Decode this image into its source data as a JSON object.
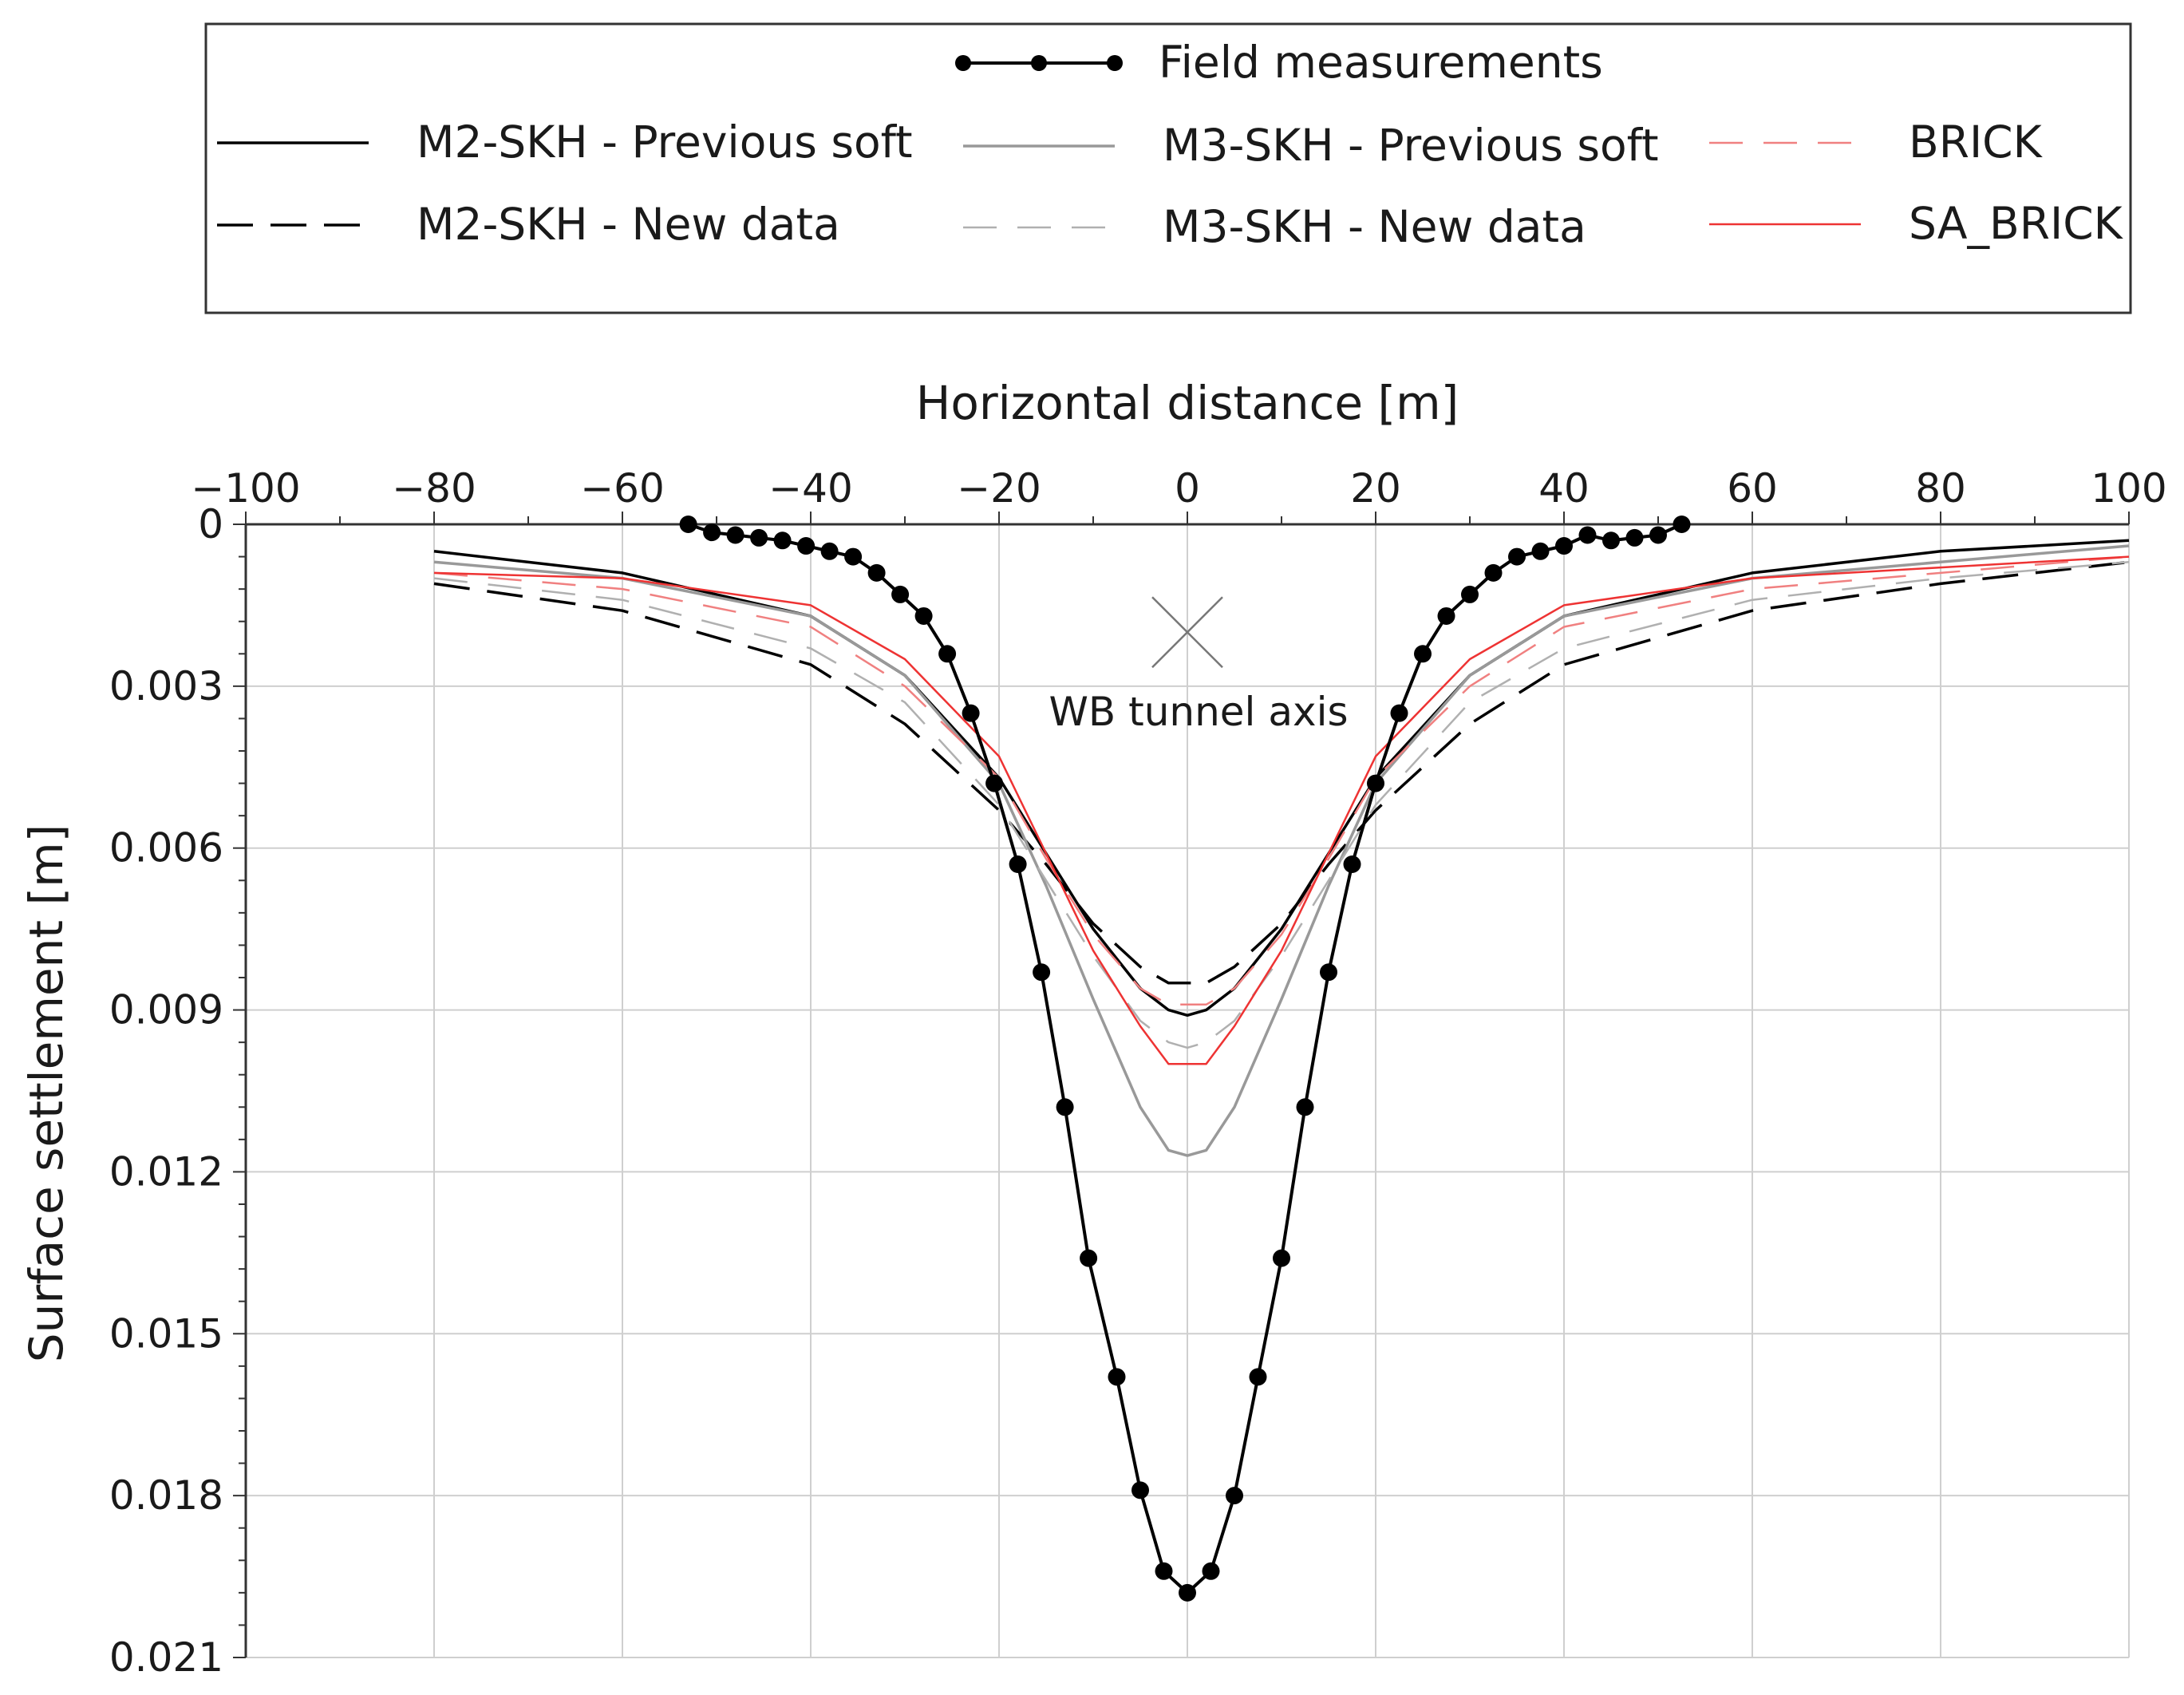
{
  "chart_data": {
    "type": "line",
    "title": "",
    "xlabel": "Horizontal distance [m]",
    "ylabel": "Surface settlement [m]",
    "xlim": [
      -100,
      100
    ],
    "ylim": [
      0,
      0.021
    ],
    "y_inverted": true,
    "x_axis_position": "top",
    "grid": true,
    "x_ticks": [
      "−100",
      "−80",
      "−60",
      "−40",
      "−20",
      "0",
      "20",
      "40",
      "60",
      "80",
      "100"
    ],
    "y_ticks": [
      "0",
      "0.003",
      "0.006",
      "0.009",
      "0.012",
      "0.015",
      "0.018",
      "0.021"
    ],
    "annotations": [
      {
        "text": "WB tunnel axis",
        "x": 0,
        "y": 0.002,
        "marker": "x"
      }
    ],
    "legend_position": "top",
    "series": [
      {
        "name": "Field measurements",
        "style": "solid-markers",
        "color": "#000000",
        "points": [
          [
            -53,
            0
          ],
          [
            -50.5,
            0.00015
          ],
          [
            -48,
            0.0002
          ],
          [
            -45.5,
            0.00025
          ],
          [
            -43,
            0.0003
          ],
          [
            -40.5,
            0.0004
          ],
          [
            -38,
            0.0005
          ],
          [
            -35.5,
            0.0006
          ],
          [
            -33,
            0.0009
          ],
          [
            -30.5,
            0.0013
          ],
          [
            -28,
            0.0017
          ],
          [
            -25.5,
            0.0024
          ],
          [
            -23,
            0.0035
          ],
          [
            -20.5,
            0.0048
          ],
          [
            -18,
            0.0063
          ],
          [
            -15.5,
            0.0083
          ],
          [
            -13,
            0.0108
          ],
          [
            -10.5,
            0.0136
          ],
          [
            -7.5,
            0.0158
          ],
          [
            -5,
            0.0179
          ],
          [
            -2.5,
            0.0194
          ],
          [
            0,
            0.0198
          ],
          [
            2.5,
            0.0194
          ],
          [
            5,
            0.018
          ],
          [
            7.5,
            0.0158
          ],
          [
            10,
            0.0136
          ],
          [
            12.5,
            0.0108
          ],
          [
            15,
            0.0083
          ],
          [
            17.5,
            0.0063
          ],
          [
            20,
            0.0048
          ],
          [
            22.5,
            0.0035
          ],
          [
            25,
            0.0024
          ],
          [
            27.5,
            0.0017
          ],
          [
            30,
            0.0013
          ],
          [
            32.5,
            0.0009
          ],
          [
            35,
            0.0006
          ],
          [
            37.5,
            0.0005
          ],
          [
            40,
            0.0004
          ],
          [
            42.5,
            0.0002
          ],
          [
            45,
            0.0003
          ],
          [
            47.5,
            0.00025
          ],
          [
            50,
            0.0002
          ],
          [
            52.5,
            0
          ]
        ]
      },
      {
        "name": "M2-SKH - Previous soft",
        "style": "solid",
        "color": "#000000",
        "points": [
          [
            -80,
            0.0005
          ],
          [
            -60,
            0.0009
          ],
          [
            -40,
            0.0017
          ],
          [
            -30,
            0.0028
          ],
          [
            -20,
            0.0047
          ],
          [
            -15,
            0.0061
          ],
          [
            -10,
            0.0075
          ],
          [
            -5,
            0.0086
          ],
          [
            -2,
            0.009
          ],
          [
            0,
            0.0091
          ],
          [
            2,
            0.009
          ],
          [
            5,
            0.0086
          ],
          [
            10,
            0.0075
          ],
          [
            15,
            0.0061
          ],
          [
            20,
            0.0047
          ],
          [
            30,
            0.0028
          ],
          [
            40,
            0.0017
          ],
          [
            60,
            0.0009
          ],
          [
            80,
            0.0005
          ],
          [
            100,
            0.0003
          ]
        ]
      },
      {
        "name": "M2-SKH - New data",
        "style": "dashed",
        "color": "#000000",
        "points": [
          [
            -80,
            0.0011
          ],
          [
            -60,
            0.0016
          ],
          [
            -40,
            0.0026
          ],
          [
            -30,
            0.0037
          ],
          [
            -20,
            0.0053
          ],
          [
            -15,
            0.0063
          ],
          [
            -10,
            0.0074
          ],
          [
            -5,
            0.0082
          ],
          [
            -2,
            0.0085
          ],
          [
            0,
            0.0085
          ],
          [
            2,
            0.0085
          ],
          [
            5,
            0.0082
          ],
          [
            10,
            0.0074
          ],
          [
            15,
            0.0063
          ],
          [
            20,
            0.0053
          ],
          [
            30,
            0.0037
          ],
          [
            40,
            0.0026
          ],
          [
            60,
            0.0016
          ],
          [
            80,
            0.0011
          ],
          [
            100,
            0.0007
          ]
        ]
      },
      {
        "name": "M3-SKH - Previous soft",
        "style": "solid",
        "color": "#999999",
        "points": [
          [
            -80,
            0.0007
          ],
          [
            -60,
            0.001
          ],
          [
            -40,
            0.0017
          ],
          [
            -30,
            0.0028
          ],
          [
            -20,
            0.0048
          ],
          [
            -15,
            0.0067
          ],
          [
            -10,
            0.0088
          ],
          [
            -5,
            0.0108
          ],
          [
            -2,
            0.0116
          ],
          [
            0,
            0.0117
          ],
          [
            2,
            0.0116
          ],
          [
            5,
            0.0108
          ],
          [
            10,
            0.0088
          ],
          [
            15,
            0.0067
          ],
          [
            20,
            0.0048
          ],
          [
            30,
            0.0028
          ],
          [
            40,
            0.0017
          ],
          [
            60,
            0.001
          ],
          [
            80,
            0.0007
          ],
          [
            100,
            0.0004
          ]
        ]
      },
      {
        "name": "M3-SKH - New data",
        "style": "dashed",
        "color": "#b0b0b0",
        "points": [
          [
            -80,
            0.001
          ],
          [
            -60,
            0.0014
          ],
          [
            -40,
            0.0023
          ],
          [
            -30,
            0.0033
          ],
          [
            -20,
            0.0052
          ],
          [
            -15,
            0.0066
          ],
          [
            -10,
            0.008
          ],
          [
            -5,
            0.0092
          ],
          [
            -2,
            0.0096
          ],
          [
            0,
            0.0097
          ],
          [
            2,
            0.0096
          ],
          [
            5,
            0.0092
          ],
          [
            10,
            0.008
          ],
          [
            15,
            0.0066
          ],
          [
            20,
            0.0052
          ],
          [
            30,
            0.0033
          ],
          [
            40,
            0.0023
          ],
          [
            60,
            0.0014
          ],
          [
            80,
            0.001
          ],
          [
            100,
            0.0007
          ]
        ]
      },
      {
        "name": "BRICK",
        "style": "dashed",
        "color": "#f08080",
        "points": [
          [
            -80,
            0.0009
          ],
          [
            -60,
            0.0012
          ],
          [
            -40,
            0.0019
          ],
          [
            -30,
            0.003
          ],
          [
            -20,
            0.0047
          ],
          [
            -15,
            0.0062
          ],
          [
            -10,
            0.0076
          ],
          [
            -5,
            0.0086
          ],
          [
            -2,
            0.0089
          ],
          [
            0,
            0.0089
          ],
          [
            2,
            0.0089
          ],
          [
            5,
            0.0086
          ],
          [
            10,
            0.0076
          ],
          [
            15,
            0.0062
          ],
          [
            20,
            0.0047
          ],
          [
            30,
            0.003
          ],
          [
            40,
            0.0019
          ],
          [
            60,
            0.0012
          ],
          [
            80,
            0.0009
          ],
          [
            100,
            0.0006
          ]
        ]
      },
      {
        "name": "SA_BRICK",
        "style": "solid",
        "color": "#ee3333",
        "points": [
          [
            -80,
            0.0009
          ],
          [
            -60,
            0.001
          ],
          [
            -40,
            0.0015
          ],
          [
            -30,
            0.0025
          ],
          [
            -20,
            0.0043
          ],
          [
            -15,
            0.0061
          ],
          [
            -10,
            0.0079
          ],
          [
            -5,
            0.0093
          ],
          [
            -2,
            0.01
          ],
          [
            0,
            0.01
          ],
          [
            2,
            0.01
          ],
          [
            5,
            0.0093
          ],
          [
            10,
            0.0079
          ],
          [
            15,
            0.0061
          ],
          [
            20,
            0.0043
          ],
          [
            30,
            0.0025
          ],
          [
            40,
            0.0015
          ],
          [
            60,
            0.001
          ],
          [
            80,
            0.0008
          ],
          [
            100,
            0.0006
          ]
        ]
      }
    ]
  }
}
